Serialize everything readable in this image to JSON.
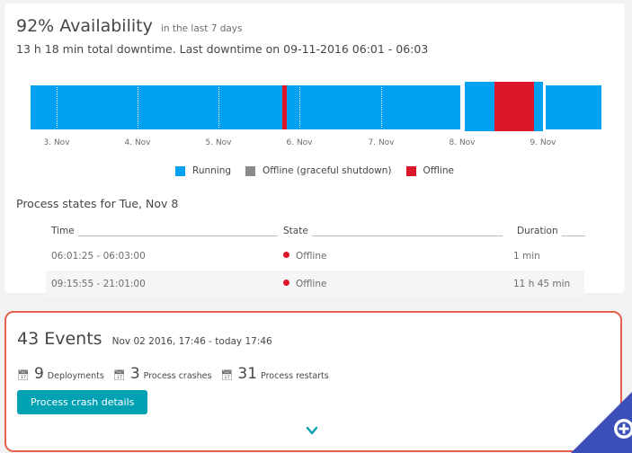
{
  "availability": {
    "title": "92% Availability",
    "subtitle": "in the last 7 days",
    "downtime": "13 h 18 min total downtime. Last downtime on 09-11-2016 06:01 - 06:03"
  },
  "timeline": {
    "ticks": [
      "3. Nov",
      "4. Nov",
      "5. Nov",
      "6. Nov",
      "7. Nov",
      "8. Nov",
      "9. Nov"
    ],
    "colors": {
      "running": "#00a1f1",
      "offline_graceful": "#8a8a8a",
      "offline": "#dc172a"
    }
  },
  "legend": [
    {
      "label": "Running",
      "color": "#00a1f1"
    },
    {
      "label": "Offline (graceful shutdown)",
      "color": "#8a8a8a"
    },
    {
      "label": "Offline",
      "color": "#dc172a"
    }
  ],
  "process_states": {
    "title": "Process states for Tue, Nov 8",
    "headers": {
      "time": "Time",
      "state": "State",
      "duration": "Duration"
    },
    "rows": [
      {
        "time": "06:01:25 - 06:03:00",
        "state": "Offline",
        "duration": "1 min"
      },
      {
        "time": "09:15:55 - 21:01:00",
        "state": "Offline",
        "duration": "11 h 45 min"
      }
    ]
  },
  "events": {
    "title": "43 Events",
    "range": "Nov 02 2016, 17:46 - today 17:46",
    "stats": [
      {
        "count": "9",
        "label": "Deployments",
        "icon": "calendar-icon"
      },
      {
        "count": "3",
        "label": "Process crashes",
        "icon": "calendar-icon"
      },
      {
        "count": "31",
        "label": "Process restarts",
        "icon": "calendar-icon"
      }
    ],
    "button_label": "Process crash details"
  }
}
